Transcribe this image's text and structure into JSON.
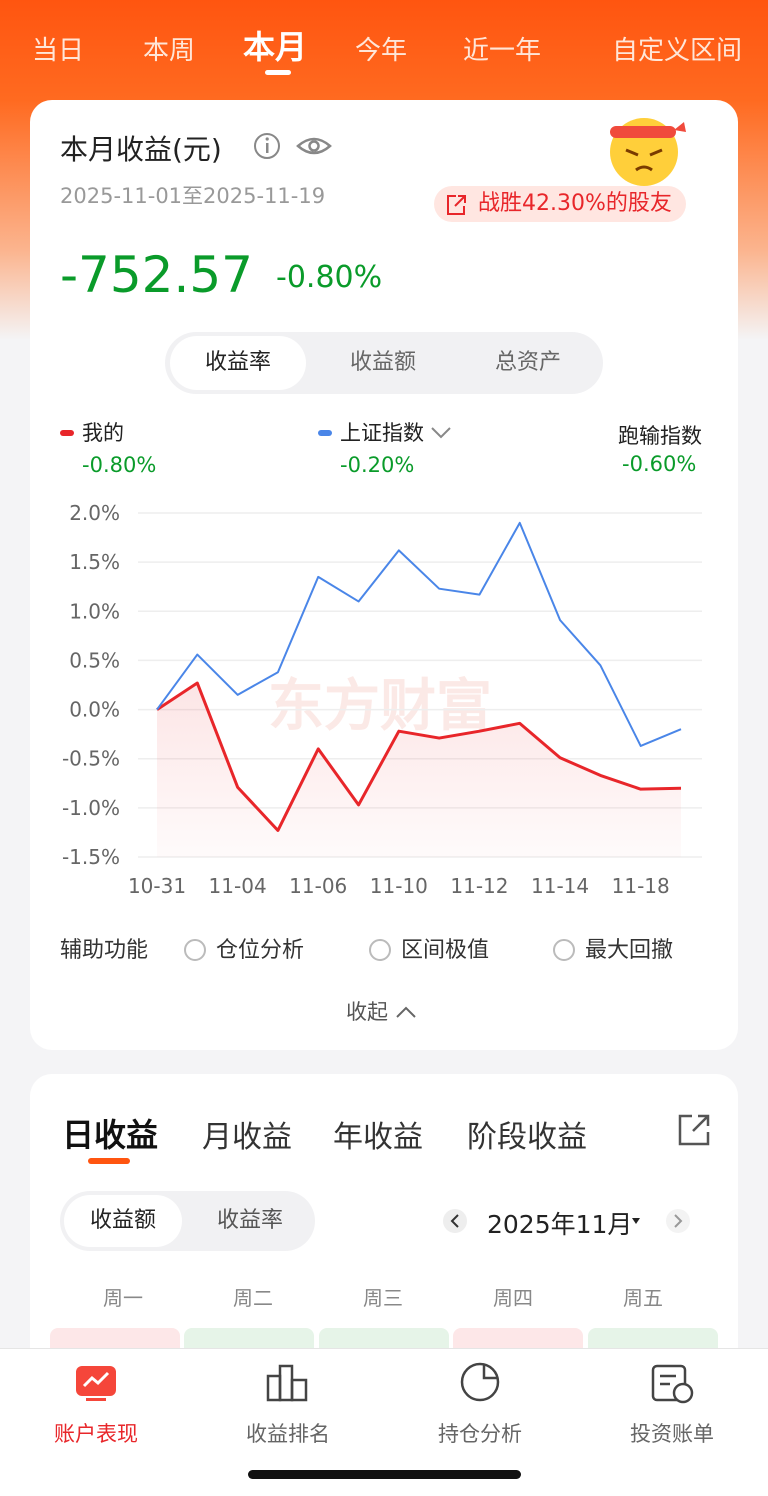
{
  "top_tabs": [
    "当日",
    "本周",
    "本月",
    "今年",
    "近一年",
    "自定义区间"
  ],
  "summary": {
    "title": "本月收益(元)",
    "date_range": "2025-11-01至2025-11-19",
    "badge": "战胜42.30%的股友",
    "amount": "-752.57",
    "rate": "-0.80%"
  },
  "segments": [
    "收益率",
    "收益额",
    "总资产"
  ],
  "benchmark": {
    "name": "跑输指数",
    "value": "-0.60%"
  },
  "chart_data": {
    "type": "line",
    "watermark": "东方财富",
    "categories": [
      "10-31",
      null,
      "11-04",
      null,
      "11-06",
      null,
      "11-10",
      null,
      "11-12",
      null,
      "11-14",
      null,
      "11-18",
      null
    ],
    "series": [
      {
        "name": "我的",
        "color": "#e8262a",
        "value_label": "-0.80%",
        "values": [
          0,
          0.27,
          -0.79,
          -1.23,
          -0.4,
          -0.97,
          -0.22,
          -0.29,
          -0.22,
          -0.14,
          -0.49,
          -0.67,
          -0.81,
          -0.8
        ]
      },
      {
        "name": "上证指数",
        "color": "#4a86e8",
        "value_label": "-0.20%",
        "values": [
          0,
          0.56,
          0.15,
          0.38,
          1.35,
          1.1,
          1.62,
          1.23,
          1.17,
          1.9,
          0.91,
          0.45,
          -0.37,
          -0.2
        ]
      }
    ],
    "ylim": [
      -1.5,
      2.0
    ],
    "yticks": [
      {
        "value": 2.0,
        "label": "2.0%"
      },
      {
        "value": 1.5,
        "label": "1.5%"
      },
      {
        "value": 1.0,
        "label": "1.0%"
      },
      {
        "value": 0.5,
        "label": "0.5%"
      },
      {
        "value": 0,
        "label": "0.0%"
      },
      {
        "value": -0.5,
        "label": "-0.5%"
      },
      {
        "value": -1.0,
        "label": "-1.0%"
      },
      {
        "value": -1.5,
        "label": "-1.5%"
      }
    ],
    "grid": true
  },
  "aux": {
    "label": "辅助功能",
    "options": [
      "仓位分析",
      "区间极值",
      "最大回撤"
    ],
    "collapse": "收起"
  },
  "income_tabs": [
    "日收益",
    "月收益",
    "年收益",
    "阶段收益"
  ],
  "income_toggle": [
    "收益额",
    "收益率"
  ],
  "month": "2025年11月",
  "weekdays": [
    "周一",
    "周二",
    "周三",
    "周四",
    "周五"
  ],
  "nav": [
    "账户表现",
    "收益排名",
    "持仓分析",
    "投资账单"
  ]
}
